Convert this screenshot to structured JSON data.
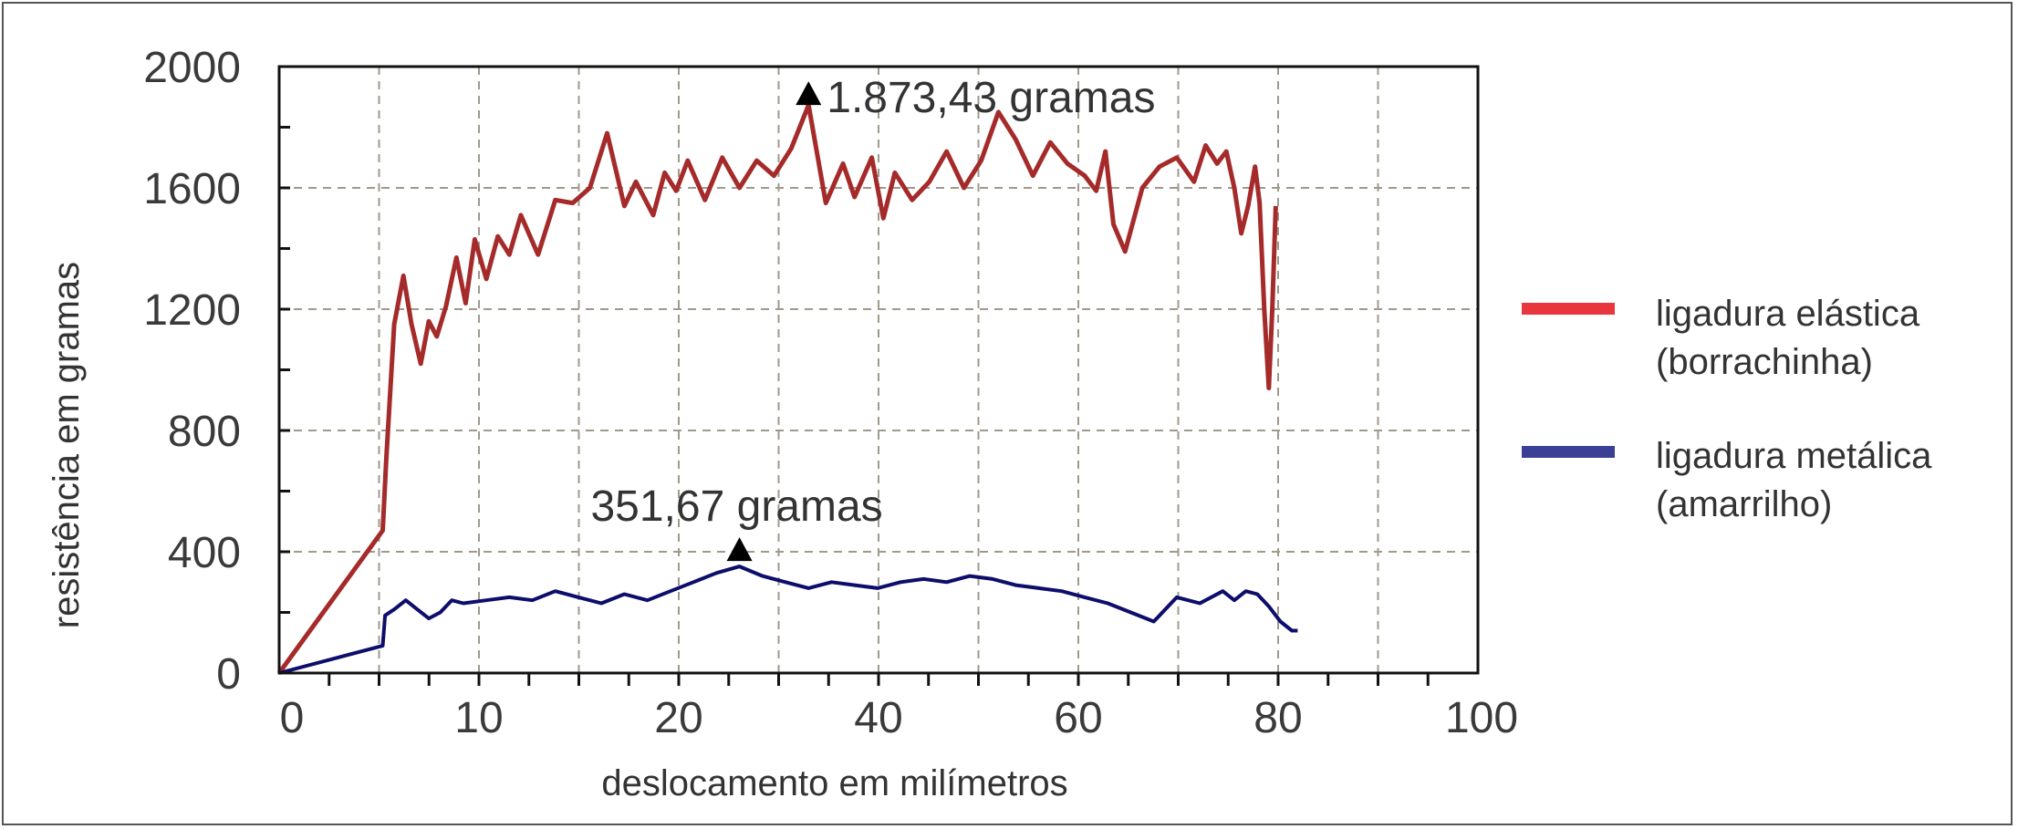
{
  "chart_data": {
    "type": "line",
    "xlabel": "deslocamento em milímetros",
    "ylabel": "resistência em gramas",
    "xlim": [
      0,
      100
    ],
    "ylim": [
      0,
      2000
    ],
    "x_ticks": [
      0,
      10,
      20,
      40,
      60,
      80,
      100
    ],
    "x_tick_labels": [
      "0",
      "10",
      "20",
      "40",
      "60",
      "80",
      "100"
    ],
    "y_ticks": [
      0,
      400,
      800,
      1200,
      1600,
      2000
    ],
    "y_tick_labels": [
      "0",
      "400",
      "800",
      "1200",
      "1600",
      "2000"
    ],
    "x_tick_positions_note": "x tick labels as printed",
    "grid": true,
    "legend_position": "right",
    "series": [
      {
        "name": "ligadura elástica (borrachinha)",
        "legend_line1": "ligadura elástica",
        "legend_line2": "(borrachinha)",
        "color": "#a52a2a",
        "legend_color": "#e8363c",
        "x": [
          0,
          9,
          9.3,
          10,
          10.8,
          11.5,
          12.3,
          13,
          13.7,
          14.5,
          15.4,
          16.2,
          17,
          18,
          19,
          20,
          21,
          22.5,
          24,
          25.5,
          27,
          28.5,
          30,
          31,
          32.5,
          33.5,
          34.5,
          35.5,
          37,
          38.5,
          40,
          41.5,
          43,
          44.5,
          46,
          47.5,
          49,
          50,
          51.5,
          52.5,
          53.5,
          55,
          56.5,
          58,
          59.5,
          61,
          62.5,
          64,
          65.5,
          67,
          68.5,
          70,
          71,
          71.8,
          72.5,
          73.5,
          75,
          76.5,
          78,
          79.5,
          80.5,
          81.5,
          82.3,
          83,
          83.6,
          84.2,
          84.8,
          85.2,
          85.6,
          86,
          86.3,
          86.6
        ],
        "y": [
          0,
          470,
          700,
          1150,
          1310,
          1150,
          1020,
          1160,
          1110,
          1210,
          1370,
          1220,
          1430,
          1300,
          1440,
          1380,
          1510,
          1380,
          1560,
          1550,
          1600,
          1780,
          1540,
          1620,
          1510,
          1650,
          1590,
          1690,
          1560,
          1700,
          1600,
          1690,
          1640,
          1730,
          1873,
          1550,
          1680,
          1570,
          1700,
          1500,
          1650,
          1560,
          1620,
          1720,
          1600,
          1690,
          1850,
          1760,
          1640,
          1750,
          1680,
          1640,
          1590,
          1720,
          1480,
          1390,
          1600,
          1670,
          1700,
          1620,
          1740,
          1680,
          1720,
          1600,
          1450,
          1540,
          1670,
          1550,
          1200,
          940,
          1200,
          1540
        ],
        "peak_label": "1.873,43 gramas",
        "peak": {
          "x": 46,
          "y": 1873.43
        }
      },
      {
        "name": "ligadura metálica (amarrilho)",
        "legend_line1": "ligadura metálica",
        "legend_line2": "(amarrilho)",
        "color": "#0d0d6b",
        "legend_color": "#3b3f95",
        "x": [
          0,
          9,
          9.2,
          10,
          11,
          12,
          13,
          14,
          15,
          16,
          18,
          20,
          22,
          24,
          26,
          28,
          30,
          32,
          34,
          36,
          38,
          40,
          42,
          44,
          46,
          48,
          50,
          52,
          54,
          56,
          58,
          60,
          62,
          64,
          66,
          68,
          70,
          72,
          74,
          76,
          78,
          80,
          82,
          83,
          84,
          85,
          86,
          87,
          88,
          88.5
        ],
        "y": [
          0,
          90,
          190,
          210,
          240,
          210,
          180,
          200,
          240,
          230,
          240,
          250,
          240,
          270,
          250,
          230,
          260,
          240,
          270,
          300,
          330,
          351.67,
          320,
          300,
          280,
          300,
          290,
          280,
          300,
          310,
          300,
          320,
          310,
          290,
          280,
          270,
          250,
          230,
          200,
          170,
          250,
          230,
          270,
          240,
          270,
          260,
          220,
          170,
          140,
          140
        ],
        "peak_label": "351,67 gramas",
        "peak": {
          "x": 40,
          "y": 351.67
        }
      }
    ]
  }
}
